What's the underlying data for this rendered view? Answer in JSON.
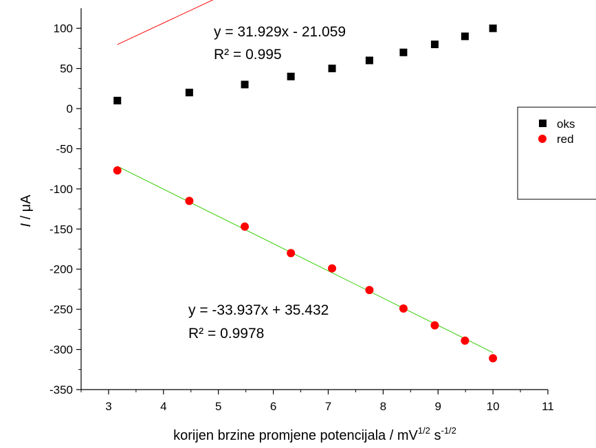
{
  "chart_data": {
    "type": "scatter",
    "xlabel_main": "korijen brzine promjene potencijala / mV",
    "xlabel_sup1": "1/2",
    "xlabel_mid": " s",
    "xlabel_sup2": "-1/2",
    "ylabel_italic": "I",
    "ylabel_rest": " / μA",
    "xlim": [
      2.5,
      11
    ],
    "ylim": [
      -350,
      125
    ],
    "x_ticks": [
      3,
      4,
      5,
      6,
      7,
      8,
      9,
      10,
      11
    ],
    "y_ticks": [
      100,
      50,
      0,
      -50,
      -100,
      -150,
      -200,
      -250,
      -300,
      -350
    ],
    "grid": false,
    "legend_position": "right",
    "series": [
      {
        "name": "oks",
        "marker": "square",
        "color": "#000000",
        "x": [
          3.16,
          4.47,
          5.48,
          6.32,
          7.07,
          7.75,
          8.37,
          8.94,
          9.49,
          10.0
        ],
        "y": [
          10,
          20,
          30,
          40,
          50,
          60,
          70,
          80,
          90,
          100
        ],
        "trendline": {
          "slope": 31.929,
          "intercept": -21.059,
          "color": "#ff0000",
          "equation": "y = 31.929x - 21.059",
          "r2": "R² = 0.995"
        }
      },
      {
        "name": "red",
        "marker": "circle",
        "color": "#ff0000",
        "x": [
          3.16,
          4.47,
          5.48,
          6.32,
          7.07,
          7.75,
          8.37,
          8.94,
          9.49,
          10.0
        ],
        "y": [
          -77,
          -115,
          -147,
          -180,
          -199,
          -226,
          -249,
          -270,
          -289,
          -311
        ],
        "trendline": {
          "slope": -33.937,
          "intercept": 35.432,
          "color": "#33cc00",
          "equation": "y = -33.937x + 35.432",
          "r2": "R² = 0.9978"
        }
      }
    ]
  }
}
